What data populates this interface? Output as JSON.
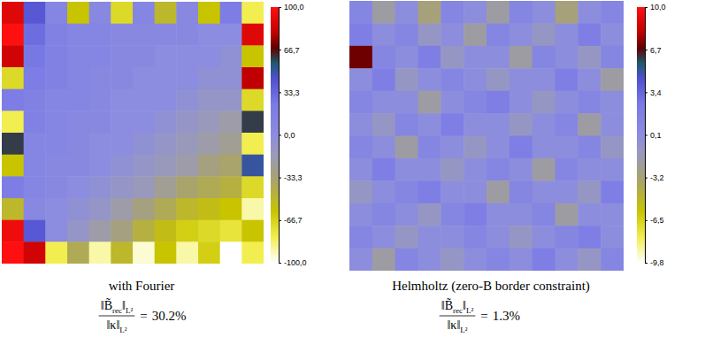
{
  "chart_data": [
    {
      "type": "heatmap",
      "caption": "with Fourier",
      "tick_labels": false,
      "ratio": {
        "numerator": [
          {
            "text": "‖B̃",
            "sub": "rec"
          },
          {
            "text": "‖",
            "sub": "L²"
          }
        ],
        "denominator": [
          {
            "text": "‖κ‖",
            "sub": "L²"
          }
        ],
        "relation": "=",
        "value": 30.2,
        "label": "30.2%"
      },
      "cells": [
        [
          90,
          40,
          10,
          -60,
          5,
          -70,
          10,
          -50,
          5,
          -60,
          20,
          -80
        ],
        [
          100,
          30,
          15,
          10,
          10,
          5,
          5,
          5,
          5,
          0,
          0,
          90
        ],
        [
          85,
          25,
          15,
          10,
          10,
          5,
          5,
          0,
          0,
          0,
          -5,
          -60
        ],
        [
          -70,
          20,
          15,
          10,
          5,
          5,
          0,
          0,
          0,
          -5,
          -5,
          80
        ],
        [
          20,
          15,
          10,
          10,
          5,
          0,
          0,
          0,
          -5,
          -10,
          -10,
          -70
        ],
        [
          -80,
          15,
          10,
          5,
          5,
          0,
          0,
          -5,
          -10,
          -15,
          -20,
          60
        ],
        [
          60,
          10,
          10,
          5,
          0,
          0,
          -5,
          -10,
          -15,
          -20,
          -25,
          -80
        ],
        [
          -60,
          10,
          5,
          5,
          0,
          -5,
          -10,
          -15,
          -20,
          -30,
          -35,
          50
        ],
        [
          20,
          10,
          5,
          0,
          -5,
          -10,
          -15,
          -25,
          -35,
          -40,
          -45,
          -70
        ],
        [
          -50,
          5,
          0,
          -5,
          -10,
          -20,
          -30,
          -40,
          -50,
          -55,
          -60,
          -90
        ],
        [
          95,
          40,
          0,
          -10,
          -20,
          -30,
          -45,
          -55,
          -65,
          -70,
          -75,
          -60
        ],
        [
          100,
          85,
          -80,
          -40,
          -90,
          -50,
          -95,
          -60,
          -90,
          -65,
          -100,
          -80
        ]
      ],
      "color_range": [
        -100,
        100
      ],
      "color_ticks": [
        {
          "value": 100,
          "label": "100,0"
        },
        {
          "value": 66.7,
          "label": "66,7"
        },
        {
          "value": 33.3,
          "label": "33,3"
        },
        {
          "value": 0,
          "label": "0,0"
        },
        {
          "value": -33.3,
          "label": "-33,3"
        },
        {
          "value": -66.7,
          "label": "-66,7"
        },
        {
          "value": -100,
          "label": "-100,0"
        }
      ]
    },
    {
      "type": "heatmap",
      "caption": "Helmholtz (zero-B border constraint)",
      "tick_labels": false,
      "ratio": {
        "numerator": [
          {
            "text": "‖B̃",
            "sub": "rec"
          },
          {
            "text": "‖",
            "sub": "L²"
          }
        ],
        "denominator": [
          {
            "text": "‖κ‖",
            "sub": "L²"
          }
        ],
        "relation": "=",
        "value": 1.3,
        "label": "1.3%"
      },
      "cells": [
        [
          1,
          -2,
          0,
          -3,
          1,
          0,
          -2,
          1,
          0,
          -3,
          0,
          1
        ],
        [
          2,
          0,
          1,
          -1,
          0,
          -2,
          1,
          0,
          -1,
          0,
          2,
          0
        ],
        [
          7,
          1,
          0,
          2,
          -1,
          0,
          0,
          -2,
          1,
          0,
          -1,
          1
        ],
        [
          0,
          2,
          -1,
          0,
          1,
          0,
          -1,
          0,
          0,
          2,
          0,
          -2
        ],
        [
          1,
          0,
          0,
          -2,
          0,
          1,
          2,
          0,
          -1,
          0,
          1,
          0
        ],
        [
          0,
          -1,
          1,
          0,
          2,
          0,
          0,
          -1,
          0,
          1,
          -2,
          0
        ],
        [
          1,
          0,
          -2,
          1,
          0,
          -1,
          0,
          2,
          0,
          0,
          1,
          -1
        ],
        [
          0,
          2,
          0,
          0,
          -1,
          0,
          1,
          0,
          -2,
          1,
          0,
          0
        ],
        [
          -1,
          0,
          1,
          2,
          0,
          0,
          -2,
          1,
          0,
          0,
          -1,
          2
        ],
        [
          0,
          1,
          0,
          -1,
          1,
          2,
          0,
          0,
          1,
          -2,
          0,
          0
        ],
        [
          1,
          0,
          -1,
          0,
          0,
          1,
          0,
          -1,
          0,
          1,
          2,
          0
        ],
        [
          0,
          -2,
          1,
          0,
          -1,
          0,
          1,
          0,
          2,
          0,
          -1,
          1
        ]
      ],
      "color_range": [
        -9.8,
        10
      ],
      "color_ticks": [
        {
          "value": 10,
          "label": "10,0"
        },
        {
          "value": 6.7,
          "label": "6,7"
        },
        {
          "value": 3.4,
          "label": "3,4"
        },
        {
          "value": 0.1,
          "label": "0,1"
        },
        {
          "value": -3.2,
          "label": "-3,2"
        },
        {
          "value": -6.5,
          "label": "-6,5"
        },
        {
          "value": -9.8,
          "label": "-9,8"
        }
      ]
    }
  ]
}
